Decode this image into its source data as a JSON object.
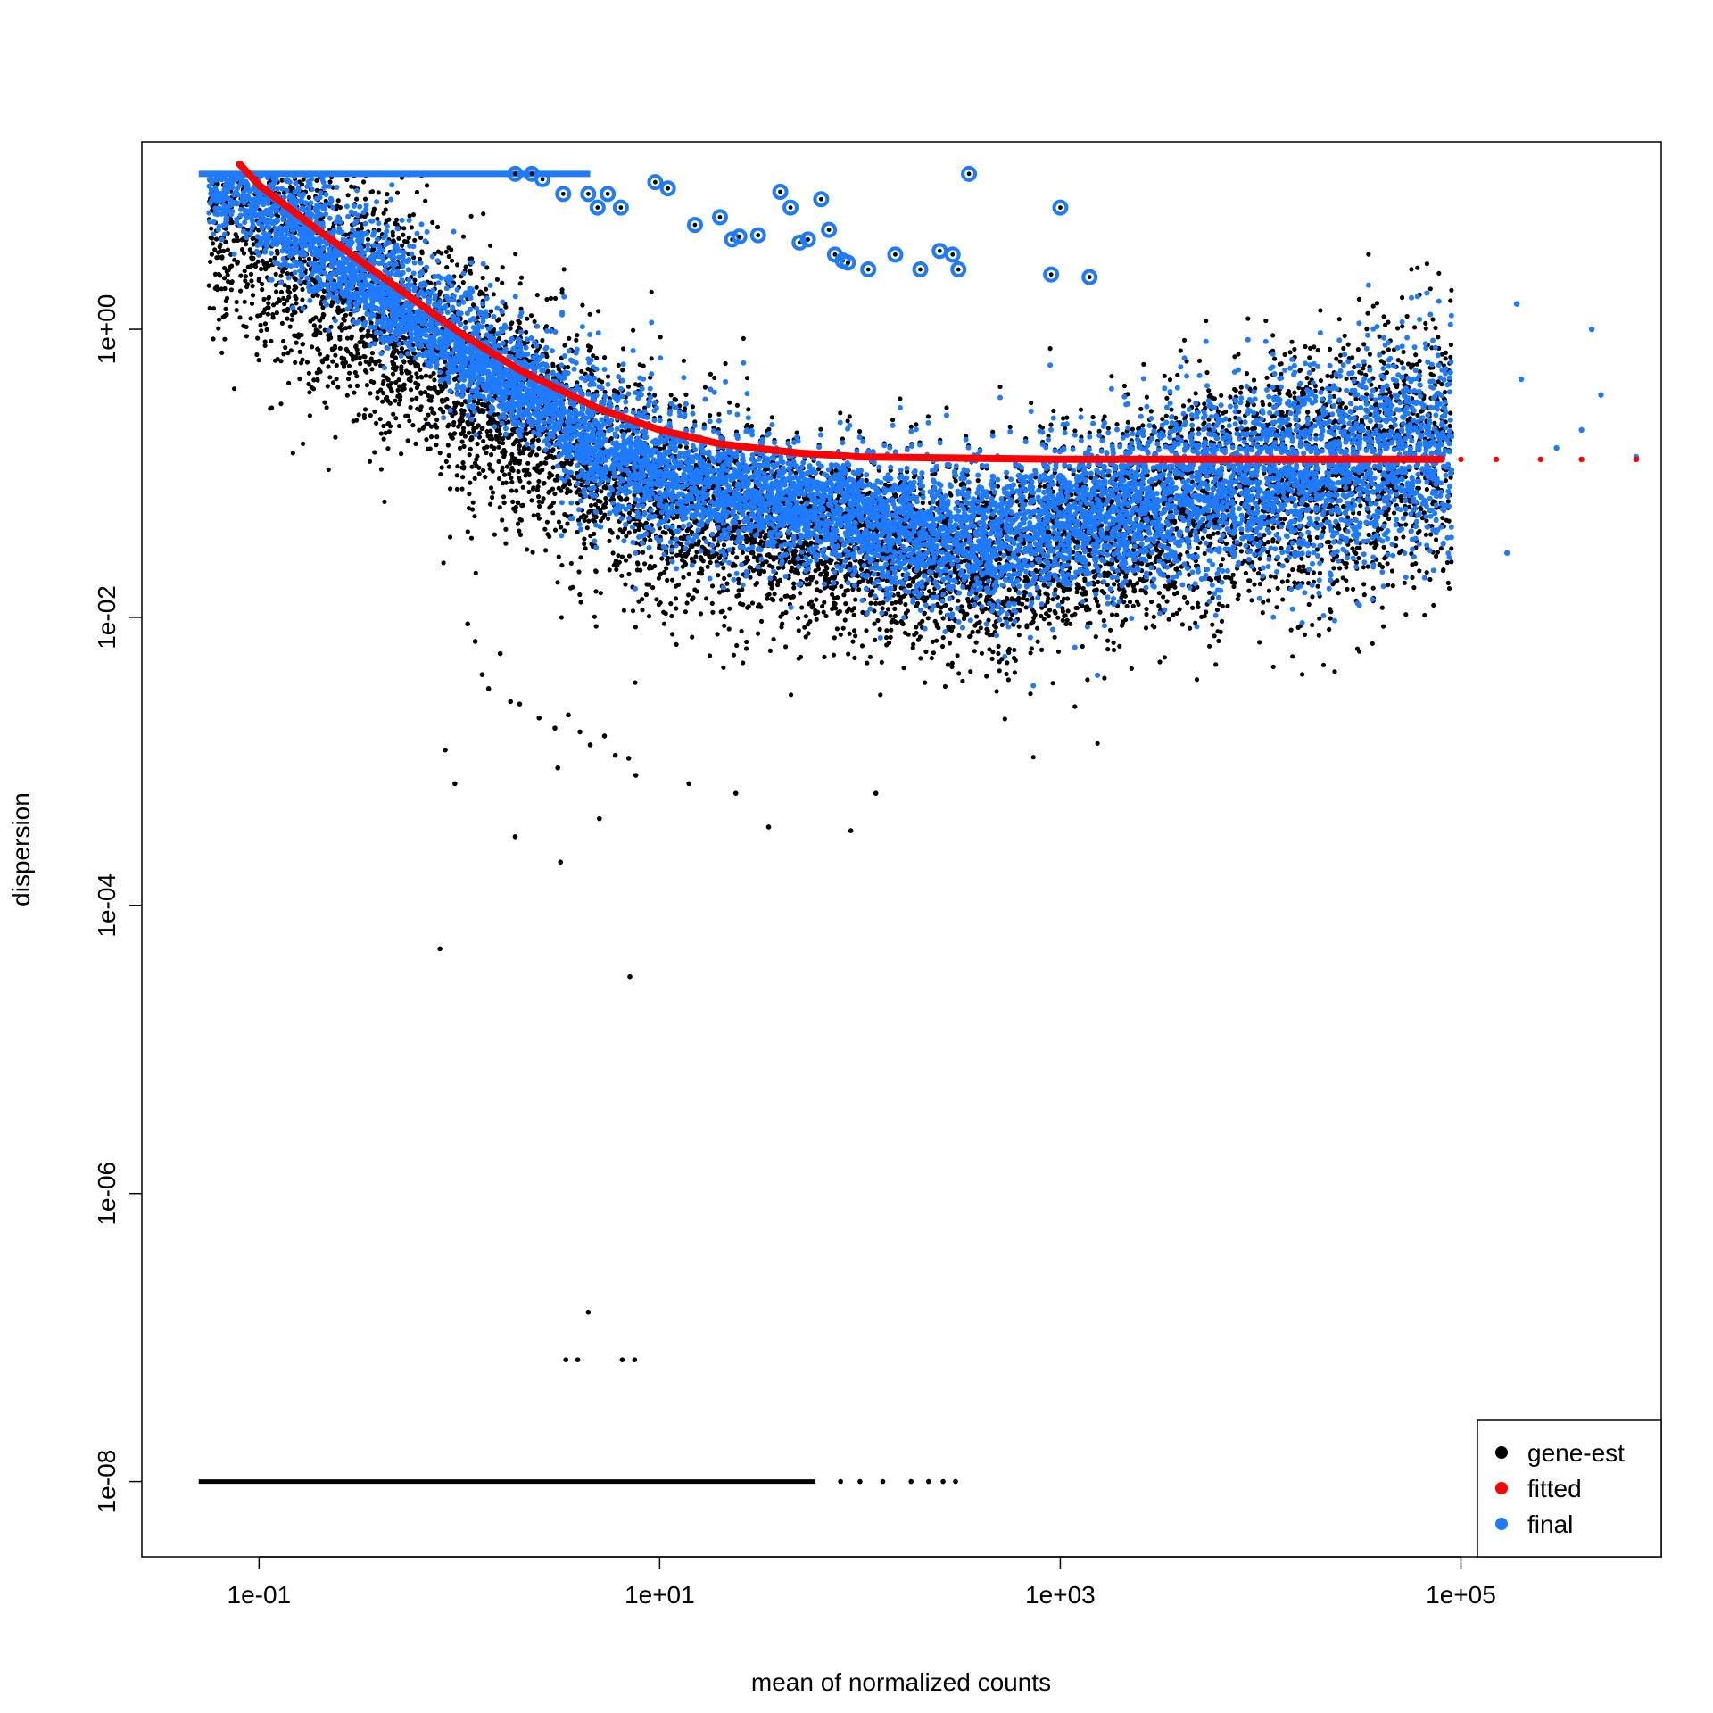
{
  "chart_data": {
    "type": "scatter",
    "title": "",
    "xlabel": "mean of normalized counts",
    "ylabel": "dispersion",
    "xscale": "log",
    "yscale": "log",
    "xlim": [
      0.026,
      1000000
    ],
    "ylim": [
      3e-09,
      20
    ],
    "x_ticks": [
      0.1,
      10,
      1000,
      100000
    ],
    "x_tick_labels": [
      "1e-01",
      "1e+01",
      "1e+03",
      "1e+05"
    ],
    "y_ticks": [
      1e-08,
      1e-06,
      0.0001,
      0.01,
      1
    ],
    "y_tick_labels": [
      "1e-08",
      "1e-06",
      "1e-04",
      "1e-02",
      "1e+00"
    ],
    "grid": false,
    "legend": {
      "position": "bottom-right",
      "entries": [
        {
          "label": "gene-est",
          "color": "#000000"
        },
        {
          "label": "fitted",
          "color": "#ff0000"
        },
        {
          "label": "final",
          "color": "#1e7bff"
        }
      ]
    },
    "series": [
      {
        "name": "gene-est",
        "color": "#000000",
        "description_points": [
          {
            "x": 0.15,
            "y": 1e-06,
            "cloud": false
          }
        ],
        "outliers": [
          {
            "x": 0.8,
            "y": 5e-05
          },
          {
            "x": 0.85,
            "y": 0.0012
          },
          {
            "x": 0.95,
            "y": 0.0007
          },
          {
            "x": 1.9,
            "y": 0.0003
          },
          {
            "x": 3.2,
            "y": 0.0002
          },
          {
            "x": 7.1,
            "y": 3.2e-05
          },
          {
            "x": 3.1,
            "y": 0.0009
          },
          {
            "x": 7.0,
            "y": 0.00105
          },
          {
            "x": 7.6,
            "y": 0.0008
          },
          {
            "x": 5.0,
            "y": 0.0004
          },
          {
            "x": 14,
            "y": 0.0007
          },
          {
            "x": 24,
            "y": 0.0006
          },
          {
            "x": 35,
            "y": 0.00035
          },
          {
            "x": 90,
            "y": 0.00033
          },
          {
            "x": 120,
            "y": 0.0006
          },
          {
            "x": 1.1,
            "y": 0.009
          },
          {
            "x": 1.2,
            "y": 0.0068
          },
          {
            "x": 1.3,
            "y": 0.004
          },
          {
            "x": 1.6,
            "y": 0.0056
          },
          {
            "x": 2.0,
            "y": 0.0025
          },
          {
            "x": 2.5,
            "y": 0.002
          },
          {
            "x": 3.0,
            "y": 0.0017
          },
          {
            "x": 1.4,
            "y": 0.0032
          },
          {
            "x": 1.8,
            "y": 0.0026
          },
          {
            "x": 3.5,
            "y": 0.0021
          },
          {
            "x": 4.0,
            "y": 0.0016
          },
          {
            "x": 4.5,
            "y": 0.0013
          },
          {
            "x": 5.3,
            "y": 0.0015
          },
          {
            "x": 6.0,
            "y": 0.0011
          },
          {
            "x": 4.4,
            "y": 1.5e-07
          },
          {
            "x": 3.4,
            "y": 7e-08
          },
          {
            "x": 3.9,
            "y": 7e-08
          },
          {
            "x": 6.5,
            "y": 7e-08
          },
          {
            "x": 7.5,
            "y": 7e-08
          }
        ],
        "floor_segment": {
          "y": 1e-08,
          "x_from": 0.05,
          "x_to": 300
        }
      },
      {
        "name": "fitted",
        "color": "#ff0000",
        "curve": [
          {
            "x": 0.08,
            "y": 14
          },
          {
            "x": 0.1,
            "y": 10
          },
          {
            "x": 0.2,
            "y": 4.8
          },
          {
            "x": 0.5,
            "y": 1.9
          },
          {
            "x": 1,
            "y": 0.95
          },
          {
            "x": 2,
            "y": 0.52
          },
          {
            "x": 5,
            "y": 0.28
          },
          {
            "x": 10,
            "y": 0.2
          },
          {
            "x": 20,
            "y": 0.16
          },
          {
            "x": 50,
            "y": 0.138
          },
          {
            "x": 100,
            "y": 0.13
          },
          {
            "x": 1000,
            "y": 0.125
          },
          {
            "x": 10000,
            "y": 0.125
          },
          {
            "x": 80000,
            "y": 0.125
          }
        ],
        "tail_points": [
          {
            "x": 100000,
            "y": 0.125
          },
          {
            "x": 150000,
            "y": 0.125
          },
          {
            "x": 250000,
            "y": 0.125
          },
          {
            "x": 400000,
            "y": 0.125
          },
          {
            "x": 750000,
            "y": 0.125
          }
        ]
      },
      {
        "name": "final",
        "color": "#1e7bff",
        "top_cap": {
          "y": 12,
          "x_from": 0.05,
          "x_to": 4.5
        },
        "circled_outliers": [
          {
            "x": 1.9,
            "y": 12
          },
          {
            "x": 2.3,
            "y": 12
          },
          {
            "x": 2.6,
            "y": 11
          },
          {
            "x": 3.3,
            "y": 8.7
          },
          {
            "x": 4.4,
            "y": 8.7
          },
          {
            "x": 4.9,
            "y": 7.0
          },
          {
            "x": 5.5,
            "y": 8.7
          },
          {
            "x": 6.4,
            "y": 7.0
          },
          {
            "x": 9.5,
            "y": 10.5
          },
          {
            "x": 11,
            "y": 9.5
          },
          {
            "x": 15,
            "y": 5.3
          },
          {
            "x": 20,
            "y": 6.0
          },
          {
            "x": 23,
            "y": 4.2
          },
          {
            "x": 25,
            "y": 4.4
          },
          {
            "x": 31,
            "y": 4.5
          },
          {
            "x": 40,
            "y": 9.0
          },
          {
            "x": 45,
            "y": 7.0
          },
          {
            "x": 50,
            "y": 4.0
          },
          {
            "x": 55,
            "y": 4.2
          },
          {
            "x": 64,
            "y": 8.0
          },
          {
            "x": 70,
            "y": 4.9
          },
          {
            "x": 75,
            "y": 3.3
          },
          {
            "x": 82,
            "y": 3.0
          },
          {
            "x": 87,
            "y": 2.9
          },
          {
            "x": 110,
            "y": 2.6
          },
          {
            "x": 150,
            "y": 3.3
          },
          {
            "x": 200,
            "y": 2.6
          },
          {
            "x": 250,
            "y": 3.5
          },
          {
            "x": 290,
            "y": 3.3
          },
          {
            "x": 310,
            "y": 2.6
          },
          {
            "x": 350,
            "y": 12
          },
          {
            "x": 900,
            "y": 2.4
          },
          {
            "x": 1000,
            "y": 7.0
          },
          {
            "x": 1400,
            "y": 2.3
          }
        ],
        "tail_points": [
          {
            "x": 170000,
            "y": 0.028
          },
          {
            "x": 190000,
            "y": 1.5
          },
          {
            "x": 200000,
            "y": 0.45
          },
          {
            "x": 300000,
            "y": 0.15
          },
          {
            "x": 400000,
            "y": 0.2
          },
          {
            "x": 450000,
            "y": 1.0
          },
          {
            "x": 500000,
            "y": 0.35
          },
          {
            "x": 750000,
            "y": 0.13
          }
        ]
      }
    ]
  }
}
